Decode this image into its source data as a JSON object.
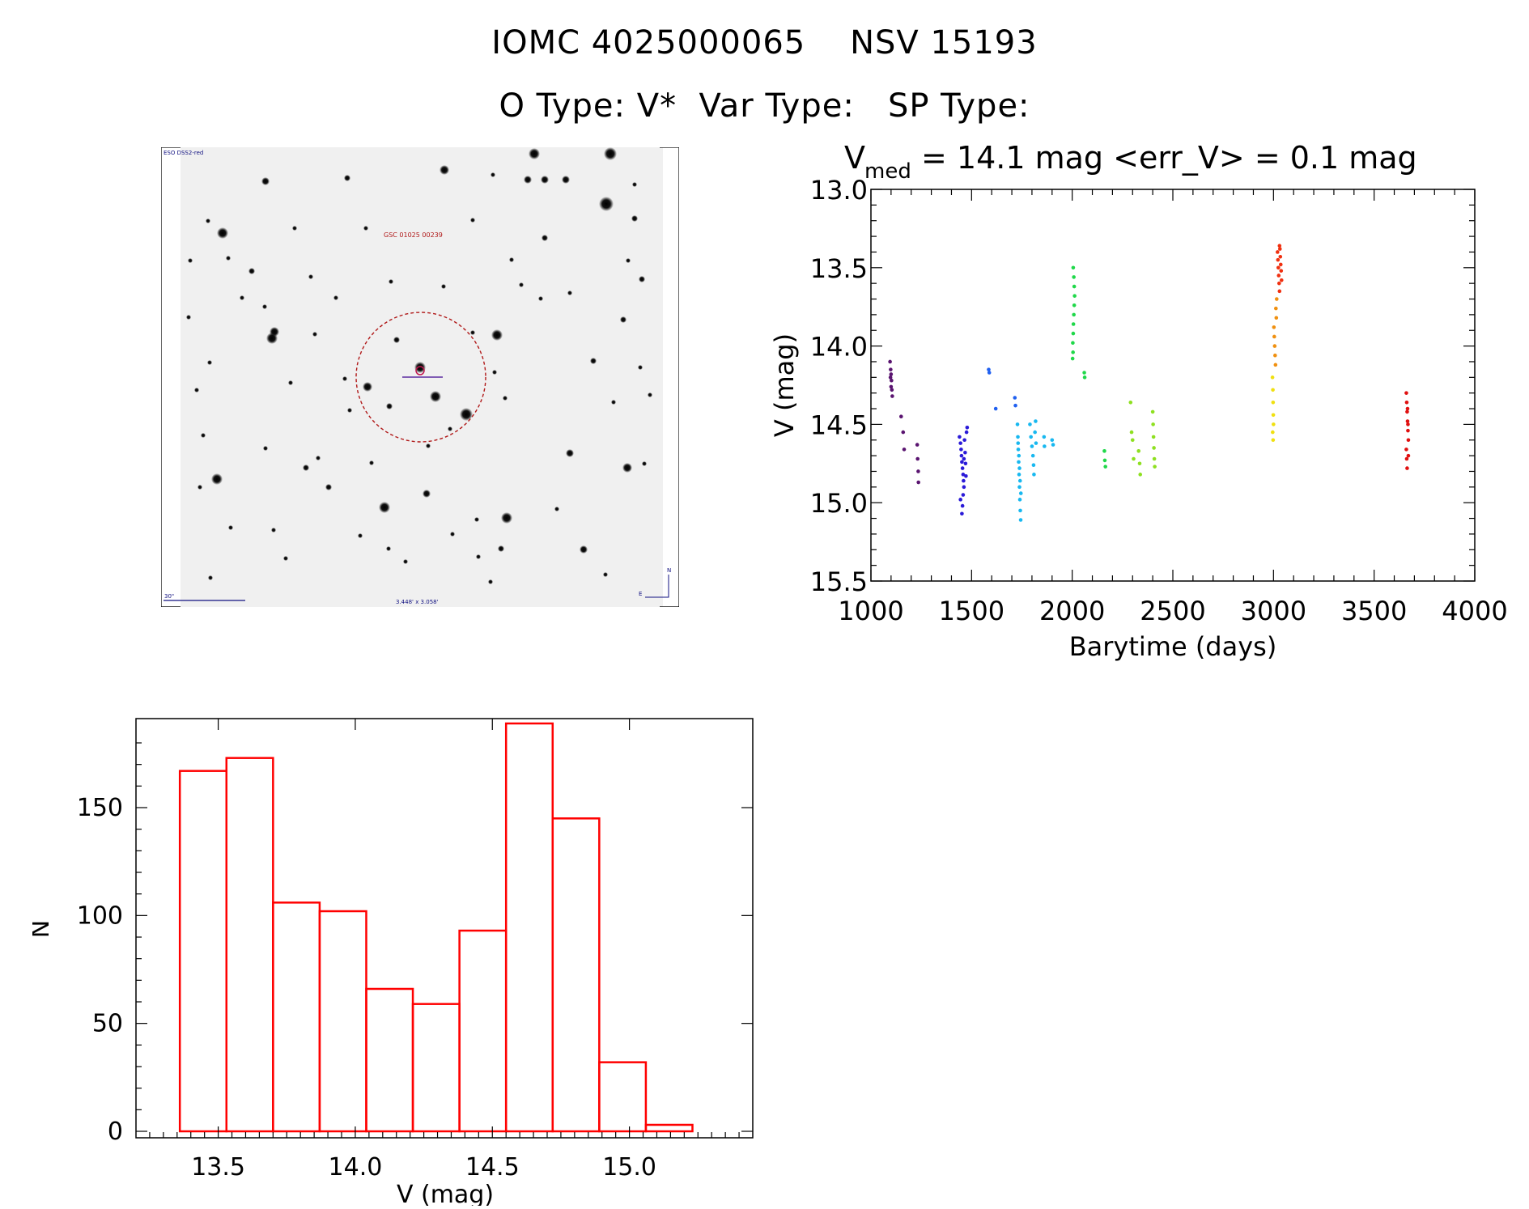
{
  "header": {
    "title_line1": "IOMC 4025000065    NSV 15193",
    "title_line2": "O Type: V*  Var Type:   SP Type:"
  },
  "sky_image": {
    "survey_label": "ESO DSS2-red",
    "object_label": "GSC 01025 00239",
    "scale_label": "30\"",
    "fov_label": "3.448' x 3.058'",
    "north_label": "N",
    "east_label": "E"
  },
  "chart_data": [
    {
      "type": "scatter",
      "title": "= 14.1 mag <err_V> = 0.1 mag",
      "title_prefix": "V",
      "title_subscript": "med",
      "xlabel": "Barytime (days)",
      "ylabel": "V (mag)",
      "xlim": [
        1000,
        4000
      ],
      "ylim": [
        15.5,
        13.0
      ],
      "y_inverted": true,
      "xticks": [
        "1000",
        "1500",
        "2000",
        "2500",
        "3000",
        "3500",
        "4000"
      ],
      "yticks": [
        "13.0",
        "13.5",
        "14.0",
        "14.5",
        "15.0",
        "15.5"
      ],
      "colormap": "rainbow by time",
      "groups": [
        {
          "color": "#5a1470",
          "points": [
            [
              1095,
              14.1
            ],
            [
              1098,
              14.15
            ],
            [
              1100,
              14.18
            ],
            [
              1102,
              14.22
            ],
            [
              1104,
              14.28
            ],
            [
              1106,
              14.32
            ],
            [
              1100,
              14.26
            ],
            [
              1097,
              14.2
            ],
            [
              1150,
              14.45
            ],
            [
              1160,
              14.55
            ],
            [
              1165,
              14.66
            ],
            [
              1230,
              14.63
            ],
            [
              1232,
              14.72
            ],
            [
              1235,
              14.8
            ],
            [
              1236,
              14.87
            ]
          ]
        },
        {
          "color": "#2a1ad8",
          "points": [
            [
              1440,
              14.58
            ],
            [
              1445,
              14.62
            ],
            [
              1448,
              14.66
            ],
            [
              1450,
              14.7
            ],
            [
              1452,
              14.74
            ],
            [
              1455,
              14.78
            ],
            [
              1458,
              14.82
            ],
            [
              1460,
              14.86
            ],
            [
              1462,
              14.9
            ],
            [
              1458,
              14.95
            ],
            [
              1455,
              15.02
            ],
            [
              1452,
              15.07
            ],
            [
              1465,
              14.6
            ],
            [
              1468,
              14.68
            ],
            [
              1470,
              14.75
            ],
            [
              1472,
              14.83
            ],
            [
              1475,
              14.55
            ],
            [
              1478,
              14.52
            ],
            [
              1445,
              14.98
            ],
            [
              1462,
              14.72
            ]
          ]
        },
        {
          "color": "#2060f0",
          "points": [
            [
              1585,
              14.15
            ],
            [
              1588,
              14.17
            ],
            [
              1620,
              14.4
            ],
            [
              1715,
              14.33
            ],
            [
              1718,
              14.38
            ]
          ]
        },
        {
          "color": "#18b8f0",
          "points": [
            [
              1728,
              14.5
            ],
            [
              1730,
              14.58
            ],
            [
              1732,
              14.66
            ],
            [
              1734,
              14.74
            ],
            [
              1736,
              14.82
            ],
            [
              1738,
              14.9
            ],
            [
              1740,
              14.98
            ],
            [
              1742,
              15.05
            ],
            [
              1744,
              15.11
            ],
            [
              1735,
              14.7
            ],
            [
              1738,
              14.78
            ],
            [
              1741,
              14.86
            ],
            [
              1731,
              14.62
            ],
            [
              1745,
              14.94
            ],
            [
              1790,
              14.5
            ],
            [
              1795,
              14.58
            ],
            [
              1800,
              14.64
            ],
            [
              1805,
              14.7
            ],
            [
              1808,
              14.76
            ],
            [
              1810,
              14.82
            ],
            [
              1815,
              14.55
            ],
            [
              1818,
              14.48
            ],
            [
              1820,
              14.62
            ],
            [
              1860,
              14.58
            ],
            [
              1862,
              14.64
            ],
            [
              1900,
              14.6
            ],
            [
              1905,
              14.63
            ]
          ]
        },
        {
          "color": "#20d84a",
          "points": [
            [
              2005,
              13.5
            ],
            [
              2008,
              13.56
            ],
            [
              2010,
              13.62
            ],
            [
              2012,
              13.68
            ],
            [
              2010,
              13.74
            ],
            [
              2008,
              13.8
            ],
            [
              2006,
              13.86
            ],
            [
              2005,
              13.92
            ],
            [
              2003,
              13.98
            ],
            [
              2004,
              14.04
            ],
            [
              2002,
              14.08
            ],
            [
              2060,
              14.17
            ],
            [
              2062,
              14.2
            ],
            [
              2160,
              14.67
            ],
            [
              2162,
              14.73
            ],
            [
              2165,
              14.77
            ]
          ]
        },
        {
          "color": "#8ee020",
          "points": [
            [
              2290,
              14.36
            ],
            [
              2295,
              14.55
            ],
            [
              2300,
              14.6
            ],
            [
              2305,
              14.72
            ],
            [
              2330,
              14.67
            ],
            [
              2335,
              14.75
            ],
            [
              2338,
              14.82
            ],
            [
              2400,
              14.42
            ],
            [
              2402,
              14.5
            ],
            [
              2404,
              14.58
            ],
            [
              2406,
              14.65
            ],
            [
              2408,
              14.72
            ],
            [
              2410,
              14.77
            ]
          ]
        },
        {
          "color": "#f0e010",
          "points": [
            [
              2995,
              14.2
            ],
            [
              2997,
              14.28
            ],
            [
              2998,
              14.36
            ],
            [
              2999,
              14.44
            ],
            [
              3000,
              14.5
            ],
            [
              2996,
              14.55
            ],
            [
              2998,
              14.6
            ]
          ]
        },
        {
          "color": "#f09010",
          "points": [
            [
              3002,
              13.88
            ],
            [
              3004,
              13.94
            ],
            [
              3006,
              14.0
            ],
            [
              3008,
              14.06
            ],
            [
              3010,
              14.12
            ],
            [
              3012,
              13.76
            ],
            [
              3014,
              13.82
            ],
            [
              3016,
              13.7
            ]
          ]
        },
        {
          "color": "#f03010",
          "points": [
            [
              3020,
              13.4
            ],
            [
              3022,
              13.45
            ],
            [
              3024,
              13.5
            ],
            [
              3026,
              13.55
            ],
            [
              3028,
              13.6
            ],
            [
              3030,
              13.65
            ],
            [
              3032,
              13.38
            ],
            [
              3034,
              13.43
            ],
            [
              3036,
              13.48
            ],
            [
              3038,
              13.52
            ],
            [
              3040,
              13.58
            ],
            [
              3030,
              13.36
            ]
          ]
        },
        {
          "color": "#e01010",
          "points": [
            [
              3660,
              14.3
            ],
            [
              3662,
              14.36
            ],
            [
              3664,
              14.42
            ],
            [
              3666,
              14.48
            ],
            [
              3668,
              14.54
            ],
            [
              3670,
              14.6
            ],
            [
              3660,
              14.66
            ],
            [
              3662,
              14.72
            ],
            [
              3664,
              14.78
            ],
            [
              3666,
              14.4
            ],
            [
              3668,
              14.5
            ],
            [
              3670,
              14.7
            ]
          ]
        }
      ]
    },
    {
      "type": "bar",
      "histogram": true,
      "xlabel": "V (mag)",
      "ylabel": "N",
      "xlim": [
        13.2,
        15.45
      ],
      "ylim": [
        0,
        190
      ],
      "xticks": [
        "13.5",
        "14.0",
        "14.5",
        "15.0"
      ],
      "yticks": [
        "0",
        "50",
        "100",
        "150"
      ],
      "bin_edges": [
        13.36,
        13.53,
        13.7,
        13.87,
        14.04,
        14.21,
        14.38,
        14.55,
        14.72,
        14.89,
        15.06,
        15.23
      ],
      "values": [
        167,
        173,
        106,
        102,
        66,
        59,
        93,
        189,
        145,
        32,
        3
      ],
      "color": "#ff0000"
    }
  ]
}
